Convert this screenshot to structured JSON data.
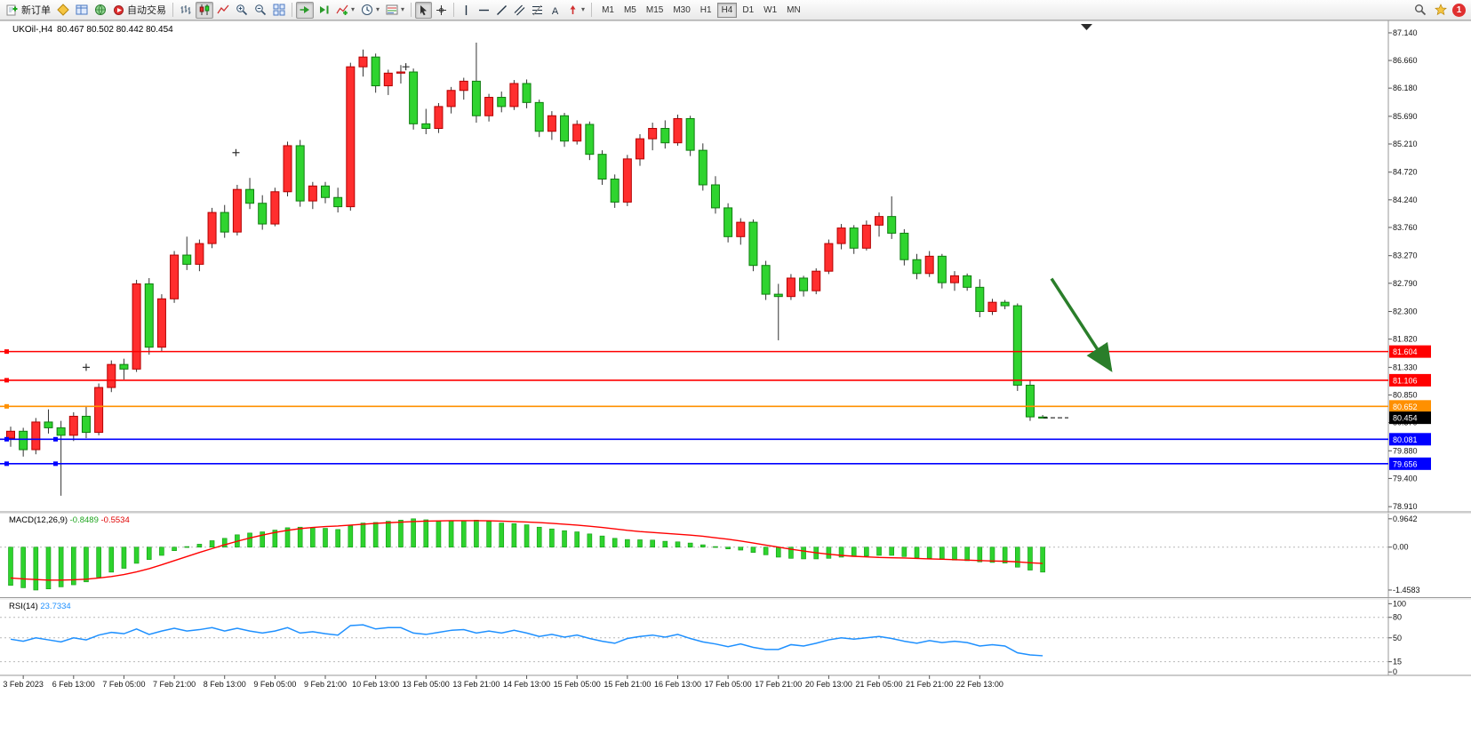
{
  "toolbar": {
    "new_order_label": "新订单",
    "autotrading_label": "自动交易",
    "timeframes": [
      "M1",
      "M5",
      "M15",
      "M30",
      "H1",
      "H4",
      "D1",
      "W1",
      "MN"
    ],
    "active_timeframe": "H4",
    "notification_count": "1"
  },
  "chart": {
    "symbol_label": "UKOil-,H4",
    "ohlc_label": "80.467 80.502 80.442 80.454",
    "price_axis_labels": [
      "87.140",
      "86.660",
      "86.180",
      "85.690",
      "85.210",
      "84.720",
      "84.240",
      "83.760",
      "83.270",
      "82.790",
      "82.300",
      "81.820",
      "81.330",
      "80.850",
      "80.370",
      "79.880",
      "79.400",
      "78.910"
    ],
    "time_axis_labels": [
      "3 Feb 2023",
      "6 Feb 13:00",
      "7 Feb 05:00",
      "7 Feb 21:00",
      "8 Feb 13:00",
      "9 Feb 05:00",
      "9 Feb 21:00",
      "10 Feb 13:00",
      "13 Feb 05:00",
      "13 Feb 21:00",
      "14 Feb 13:00",
      "15 Feb 05:00",
      "15 Feb 21:00",
      "16 Feb 13:00",
      "17 Feb 05:00",
      "17 Feb 21:00",
      "20 Feb 13:00",
      "21 Feb 05:00",
      "21 Feb 21:00",
      "22 Feb 13:00"
    ],
    "levels": [
      {
        "price": 81.604,
        "label": "81.604",
        "color": "#ff0000",
        "type": "resistance"
      },
      {
        "price": 81.106,
        "label": "81.106",
        "color": "#ff0000",
        "type": "resistance"
      },
      {
        "price": 80.652,
        "label": "80.652",
        "color": "#ff9000",
        "type": "pivot"
      },
      {
        "price": 80.081,
        "label": "80.081",
        "color": "#0000ff",
        "type": "support"
      },
      {
        "price": 79.656,
        "label": "79.656",
        "color": "#0000ff",
        "type": "support"
      }
    ],
    "current_price": {
      "label": "80.454",
      "value": 80.454,
      "color": "#000000"
    },
    "arrow": {
      "from_bar": 82.7,
      "from_price": 82.87,
      "to_bar": 87.4,
      "to_price": 81.29,
      "color": "#2a7e2a"
    },
    "cross_markers": [
      {
        "bar": 6.0,
        "price": 81.33
      },
      {
        "bar": 17.9,
        "price": 85.06
      },
      {
        "bar": 31.4,
        "price": 86.55
      }
    ]
  },
  "macd": {
    "name": "MACD(12,26,9)",
    "main_value": "-0.8489",
    "signal_value": "-0.5534",
    "axis_labels": [
      "0.9642",
      "0.00",
      "-1.4583"
    ]
  },
  "rsi": {
    "name": "RSI(14)",
    "value": "23.7334",
    "axis_labels": [
      "100",
      "80",
      "50",
      "15",
      "0"
    ],
    "level_lines": [
      80,
      50,
      15
    ]
  },
  "chart_data": {
    "type": "candlestick",
    "symbol": "UKOil",
    "timeframe": "H4",
    "price_range": [
      78.82,
      87.34
    ],
    "macd_range": [
      -1.7,
      1.14
    ],
    "rsi_range": [
      0,
      100
    ],
    "colors": {
      "bull_body": "#ff2e2e",
      "bull_border": "#b40000",
      "bear_body": "#2fd42f",
      "bear_border": "#0f7d0f",
      "wick": "#333333",
      "macd_hist": "#2ed32e",
      "macd_hist_border": "#139a13",
      "macd_signal": "#ff0000",
      "rsi_line": "#1e90ff"
    },
    "ohlc": [
      [
        80.1,
        80.3,
        79.95,
        80.22
      ],
      [
        80.22,
        80.28,
        79.78,
        79.9
      ],
      [
        79.9,
        80.45,
        79.82,
        80.38
      ],
      [
        80.38,
        80.6,
        80.18,
        80.28
      ],
      [
        80.28,
        80.4,
        79.1,
        80.15
      ],
      [
        80.15,
        80.55,
        80.05,
        80.48
      ],
      [
        80.48,
        80.65,
        80.1,
        80.2
      ],
      [
        80.2,
        81.05,
        80.15,
        80.98
      ],
      [
        80.98,
        81.45,
        80.9,
        81.38
      ],
      [
        81.38,
        81.48,
        81.12,
        81.3
      ],
      [
        81.3,
        82.85,
        81.25,
        82.78
      ],
      [
        82.78,
        82.88,
        81.55,
        81.68
      ],
      [
        81.68,
        82.6,
        81.6,
        82.52
      ],
      [
        82.52,
        83.35,
        82.45,
        83.28
      ],
      [
        83.28,
        83.6,
        83.02,
        83.12
      ],
      [
        83.12,
        83.55,
        83.0,
        83.48
      ],
      [
        83.48,
        84.1,
        83.4,
        84.02
      ],
      [
        84.02,
        84.15,
        83.58,
        83.68
      ],
      [
        83.68,
        84.5,
        83.62,
        84.42
      ],
      [
        84.42,
        84.62,
        84.08,
        84.18
      ],
      [
        84.18,
        84.32,
        83.72,
        83.82
      ],
      [
        83.82,
        84.45,
        83.78,
        84.38
      ],
      [
        84.38,
        85.25,
        84.3,
        85.18
      ],
      [
        85.18,
        85.28,
        84.12,
        84.22
      ],
      [
        84.22,
        84.55,
        84.08,
        84.48
      ],
      [
        84.48,
        84.55,
        84.18,
        84.28
      ],
      [
        84.28,
        84.45,
        84.02,
        84.12
      ],
      [
        84.12,
        86.62,
        84.05,
        86.55
      ],
      [
        86.55,
        86.85,
        86.38,
        86.72
      ],
      [
        86.72,
        86.78,
        86.1,
        86.22
      ],
      [
        86.22,
        86.5,
        86.06,
        86.44
      ],
      [
        86.44,
        86.58,
        86.26,
        86.46
      ],
      [
        86.46,
        86.52,
        85.46,
        85.56
      ],
      [
        85.56,
        85.82,
        85.38,
        85.48
      ],
      [
        85.48,
        85.92,
        85.4,
        85.86
      ],
      [
        85.86,
        86.2,
        85.74,
        86.14
      ],
      [
        86.14,
        86.36,
        85.98,
        86.3
      ],
      [
        86.3,
        86.97,
        85.58,
        85.7
      ],
      [
        85.7,
        86.08,
        85.6,
        86.02
      ],
      [
        86.02,
        86.12,
        85.76,
        85.86
      ],
      [
        85.86,
        86.32,
        85.8,
        86.26
      ],
      [
        86.26,
        86.33,
        85.83,
        85.93
      ],
      [
        85.93,
        85.98,
        85.33,
        85.43
      ],
      [
        85.43,
        85.78,
        85.28,
        85.7
      ],
      [
        85.7,
        85.75,
        85.16,
        85.26
      ],
      [
        85.26,
        85.62,
        85.2,
        85.55
      ],
      [
        85.55,
        85.6,
        84.93,
        85.03
      ],
      [
        85.03,
        85.1,
        84.5,
        84.6
      ],
      [
        84.6,
        84.68,
        84.1,
        84.2
      ],
      [
        84.2,
        85.02,
        84.13,
        84.95
      ],
      [
        84.95,
        85.38,
        84.83,
        85.3
      ],
      [
        85.3,
        85.58,
        85.1,
        85.48
      ],
      [
        85.48,
        85.62,
        85.13,
        85.23
      ],
      [
        85.23,
        85.72,
        85.18,
        85.65
      ],
      [
        85.65,
        85.7,
        85.0,
        85.1
      ],
      [
        85.1,
        85.22,
        84.4,
        84.5
      ],
      [
        84.5,
        84.65,
        84.0,
        84.1
      ],
      [
        84.1,
        84.18,
        83.5,
        83.6
      ],
      [
        83.6,
        83.92,
        83.46,
        83.85
      ],
      [
        83.85,
        83.9,
        83.0,
        83.1
      ],
      [
        83.1,
        83.18,
        82.5,
        82.6
      ],
      [
        82.6,
        82.78,
        81.8,
        82.56
      ],
      [
        82.56,
        82.95,
        82.5,
        82.88
      ],
      [
        82.88,
        82.92,
        82.56,
        82.66
      ],
      [
        82.66,
        83.05,
        82.6,
        83.0
      ],
      [
        83.0,
        83.55,
        82.95,
        83.48
      ],
      [
        83.48,
        83.82,
        83.38,
        83.75
      ],
      [
        83.75,
        83.8,
        83.3,
        83.4
      ],
      [
        83.4,
        83.88,
        83.36,
        83.8
      ],
      [
        83.8,
        84.02,
        83.6,
        83.95
      ],
      [
        83.95,
        84.3,
        83.56,
        83.66
      ],
      [
        83.66,
        83.73,
        83.1,
        83.2
      ],
      [
        83.2,
        83.3,
        82.86,
        82.96
      ],
      [
        82.96,
        83.35,
        82.9,
        83.26
      ],
      [
        83.26,
        83.3,
        82.7,
        82.8
      ],
      [
        82.8,
        83.0,
        82.66,
        82.92
      ],
      [
        82.92,
        82.96,
        82.66,
        82.72
      ],
      [
        82.72,
        82.86,
        82.2,
        82.3
      ],
      [
        82.3,
        82.52,
        82.24,
        82.46
      ],
      [
        82.46,
        82.5,
        82.34,
        82.4
      ],
      [
        82.4,
        82.44,
        80.92,
        81.02
      ],
      [
        81.02,
        81.1,
        80.4,
        80.47
      ],
      [
        80.467,
        80.502,
        80.442,
        80.454
      ]
    ],
    "macd_hist": [
      -1.3,
      -1.38,
      -1.4583,
      -1.42,
      -1.35,
      -1.28,
      -1.18,
      -1.02,
      -0.85,
      -0.72,
      -0.55,
      -0.42,
      -0.28,
      -0.12,
      0.02,
      0.1,
      0.22,
      0.3,
      0.42,
      0.48,
      0.52,
      0.58,
      0.66,
      0.68,
      0.66,
      0.64,
      0.6,
      0.72,
      0.82,
      0.84,
      0.88,
      0.92,
      0.9642,
      0.93,
      0.9,
      0.89,
      0.9,
      0.92,
      0.88,
      0.82,
      0.8,
      0.76,
      0.68,
      0.62,
      0.56,
      0.52,
      0.45,
      0.38,
      0.3,
      0.26,
      0.25,
      0.24,
      0.2,
      0.18,
      0.14,
      0.08,
      0.02,
      -0.06,
      -0.1,
      -0.18,
      -0.26,
      -0.34,
      -0.38,
      -0.4,
      -0.4,
      -0.38,
      -0.34,
      -0.32,
      -0.3,
      -0.28,
      -0.28,
      -0.32,
      -0.36,
      -0.38,
      -0.42,
      -0.44,
      -0.46,
      -0.5,
      -0.52,
      -0.54,
      -0.68,
      -0.78,
      -0.8489
    ],
    "macd_signal": [
      -1.05,
      -1.08,
      -1.1,
      -1.12,
      -1.12,
      -1.11,
      -1.09,
      -1.05,
      -1.0,
      -0.93,
      -0.84,
      -0.73,
      -0.6,
      -0.46,
      -0.32,
      -0.18,
      -0.05,
      0.08,
      0.2,
      0.31,
      0.41,
      0.5,
      0.57,
      0.63,
      0.67,
      0.7,
      0.72,
      0.75,
      0.78,
      0.81,
      0.83,
      0.85,
      0.87,
      0.885,
      0.893,
      0.9,
      0.9,
      0.9,
      0.895,
      0.885,
      0.87,
      0.855,
      0.835,
      0.81,
      0.78,
      0.75,
      0.71,
      0.67,
      0.62,
      0.57,
      0.53,
      0.5,
      0.47,
      0.44,
      0.41,
      0.37,
      0.32,
      0.27,
      0.21,
      0.14,
      0.07,
      0.0,
      -0.07,
      -0.13,
      -0.19,
      -0.24,
      -0.28,
      -0.31,
      -0.33,
      -0.35,
      -0.36,
      -0.37,
      -0.385,
      -0.4,
      -0.41,
      -0.425,
      -0.44,
      -0.455,
      -0.47,
      -0.48,
      -0.5,
      -0.53,
      -0.5534
    ],
    "rsi": [
      48,
      45,
      50,
      47,
      44,
      50,
      47,
      54,
      58,
      56,
      63,
      55,
      60,
      64,
      60,
      62,
      65,
      60,
      64,
      60,
      57,
      60,
      65,
      57,
      59,
      56,
      54,
      68,
      69,
      63,
      65,
      65,
      57,
      55,
      58,
      61,
      62,
      57,
      60,
      57,
      61,
      57,
      52,
      55,
      51,
      54,
      49,
      45,
      42,
      49,
      52,
      54,
      51,
      55,
      49,
      44,
      41,
      37,
      41,
      36,
      33,
      33,
      40,
      38,
      42,
      47,
      50,
      48,
      50,
      52,
      49,
      45,
      42,
      46,
      43,
      45,
      43,
      38,
      40,
      38,
      28,
      25,
      23.7334
    ]
  }
}
